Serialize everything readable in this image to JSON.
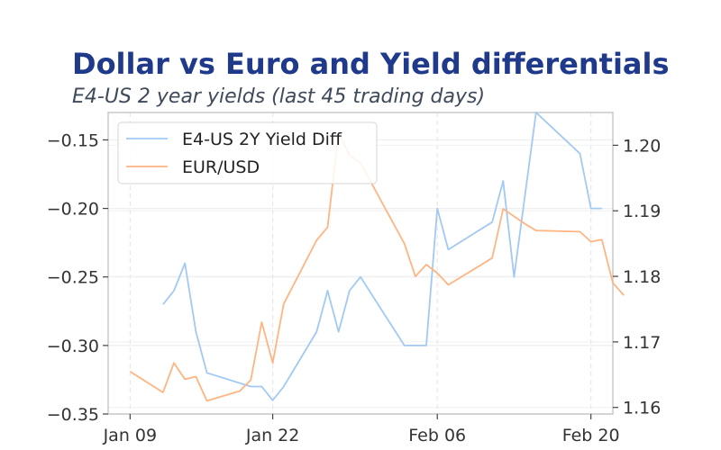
{
  "chart_data": {
    "type": "line",
    "title": "Dollar vs Euro and Yield differentials",
    "subtitle": "E4-US 2 year yields (last 45 trading days)",
    "x_tick_labels": [
      "Jan 09",
      "Jan 22",
      "Feb 06",
      "Feb 20"
    ],
    "x_tick_dates": [
      "2026-01-09",
      "2026-01-22",
      "2026-02-06",
      "2026-02-20"
    ],
    "xlim": [
      "2026-01-07",
      "2026-02-22"
    ],
    "y_left": {
      "lim": [
        -0.35,
        -0.13
      ],
      "ticks": [
        -0.35,
        -0.3,
        -0.25,
        -0.2,
        -0.15
      ],
      "tick_labels": [
        "−0.35",
        "−0.30",
        "−0.25",
        "−0.20",
        "−0.15"
      ]
    },
    "y_right": {
      "lim": [
        1.159,
        1.205
      ],
      "ticks": [
        1.16,
        1.17,
        1.18,
        1.19,
        1.2
      ],
      "tick_labels": [
        "1.16",
        "1.17",
        "1.18",
        "1.19",
        "1.20"
      ]
    },
    "grid": true,
    "legend_position": "top-left",
    "series": [
      {
        "name": "E4-US 2Y Yield Diff",
        "axis": "left",
        "color": "#a1c9f4",
        "points": [
          [
            "2026-01-12",
            -0.27
          ],
          [
            "2026-01-13",
            -0.26
          ],
          [
            "2026-01-14",
            -0.24
          ],
          [
            "2026-01-15",
            -0.29
          ],
          [
            "2026-01-16",
            -0.32
          ],
          [
            "2026-01-20",
            -0.33
          ],
          [
            "2026-01-21",
            -0.33
          ],
          [
            "2026-01-22",
            -0.34
          ],
          [
            "2026-01-23",
            -0.33
          ],
          [
            "2026-01-26",
            -0.29
          ],
          [
            "2026-01-27",
            -0.26
          ],
          [
            "2026-01-28",
            -0.29
          ],
          [
            "2026-01-29",
            -0.26
          ],
          [
            "2026-01-30",
            -0.25
          ],
          [
            "2026-02-03",
            -0.3
          ],
          [
            "2026-02-05",
            -0.3
          ],
          [
            "2026-02-06",
            -0.2
          ],
          [
            "2026-02-07",
            -0.23
          ],
          [
            "2026-02-11",
            -0.21
          ],
          [
            "2026-02-12",
            -0.18
          ],
          [
            "2026-02-13",
            -0.25
          ],
          [
            "2026-02-15",
            -0.13
          ],
          [
            "2026-02-19",
            -0.16
          ],
          [
            "2026-02-20",
            -0.2
          ],
          [
            "2026-02-21",
            -0.2
          ]
        ]
      },
      {
        "name": "EUR/USD",
        "axis": "right",
        "color": "#ffb482",
        "points": [
          [
            "2026-01-09",
            1.1655
          ],
          [
            "2026-01-12",
            1.1623
          ],
          [
            "2026-01-13",
            1.1668
          ],
          [
            "2026-01-14",
            1.1643
          ],
          [
            "2026-01-15",
            1.1647
          ],
          [
            "2026-01-16",
            1.161
          ],
          [
            "2026-01-19",
            1.1625
          ],
          [
            "2026-01-20",
            1.1642
          ],
          [
            "2026-01-21",
            1.173
          ],
          [
            "2026-01-22",
            1.1668
          ],
          [
            "2026-01-23",
            1.1758
          ],
          [
            "2026-01-26",
            1.1855
          ],
          [
            "2026-01-27",
            1.1875
          ],
          [
            "2026-01-28",
            1.202
          ],
          [
            "2026-01-29",
            1.1985
          ],
          [
            "2026-01-30",
            1.1973
          ],
          [
            "2026-02-03",
            1.185
          ],
          [
            "2026-02-04",
            1.18
          ],
          [
            "2026-02-05",
            1.1818
          ],
          [
            "2026-02-06",
            1.1805
          ],
          [
            "2026-02-07",
            1.1787
          ],
          [
            "2026-02-11",
            1.1828
          ],
          [
            "2026-02-12",
            1.1903
          ],
          [
            "2026-02-14",
            1.188
          ],
          [
            "2026-02-15",
            1.187
          ],
          [
            "2026-02-19",
            1.1868
          ],
          [
            "2026-02-20",
            1.1853
          ],
          [
            "2026-02-21",
            1.1856
          ],
          [
            "2026-02-22",
            1.179
          ],
          [
            "2026-02-23",
            1.1771
          ]
        ]
      }
    ]
  }
}
